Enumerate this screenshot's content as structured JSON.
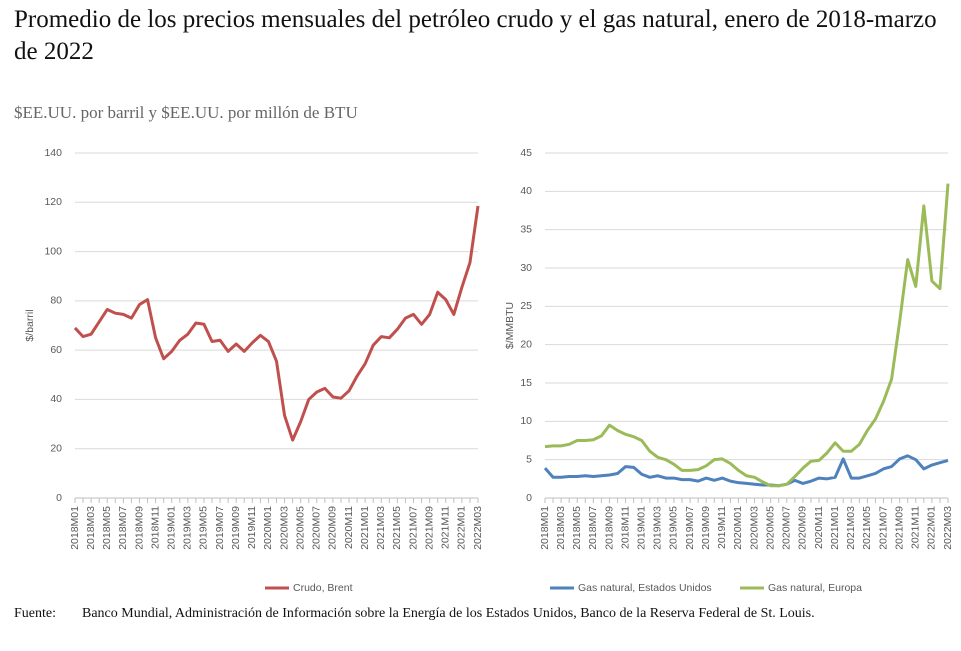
{
  "title": "Promedio de los precios mensuales del petróleo crudo y el gas natural, enero de 2018-marzo de 2022",
  "subtitle": "$EE.UU. por barril y $EE.UU. por millón de BTU",
  "source_label": "Fuente:",
  "source": "Banco Mundial, Administración de Información sobre la Energía de los Estados Unidos, Banco de la Reserva Federal de St. Louis.",
  "chart_data": [
    {
      "type": "line",
      "y_label": "$/barril",
      "ylim": [
        0,
        140
      ],
      "yticks": [
        0,
        20,
        40,
        60,
        80,
        100,
        120,
        140
      ],
      "grid": true,
      "categories": [
        "2018M01",
        null,
        "2018M03",
        null,
        "2018M05",
        null,
        "2018M07",
        null,
        "2018M09",
        null,
        "2018M11",
        null,
        "2019M01",
        null,
        "2019M03",
        null,
        "2019M05",
        null,
        "2019M07",
        null,
        "2019M09",
        null,
        "2019M11",
        null,
        "2020M01",
        null,
        "2020M03",
        null,
        "2020M05",
        null,
        "2020M07",
        null,
        "2020M09",
        null,
        "2020M11",
        null,
        "2021M01",
        null,
        "2021M03",
        null,
        "2021M05",
        null,
        "2021M07",
        null,
        "2021M09",
        null,
        "2021M11",
        null,
        "2022M01",
        null,
        "2022M03"
      ],
      "series": [
        {
          "name": "Crudo, Brent",
          "color": "#c0504d",
          "values": [
            69,
            65.5,
            66.5,
            71.5,
            76.5,
            75,
            74.5,
            73,
            78.5,
            80.5,
            65,
            56.5,
            59.5,
            64,
            66.5,
            71,
            70.5,
            63.5,
            64,
            59.5,
            62.5,
            59.5,
            63,
            66,
            63.5,
            55.5,
            33.5,
            23.5,
            31,
            40,
            43,
            44.5,
            41,
            40.5,
            43.5,
            49.5,
            54.5,
            62,
            65.5,
            65,
            68.5,
            73,
            74.5,
            70.5,
            74.5,
            83.5,
            80.5,
            74.5,
            85.5,
            95.5,
            118.5
          ]
        }
      ]
    },
    {
      "type": "line",
      "y_label": "$/MMBTU",
      "ylim": [
        0,
        45
      ],
      "yticks": [
        0,
        5,
        10,
        15,
        20,
        25,
        30,
        35,
        40,
        45
      ],
      "grid": true,
      "categories": [
        "2018M01",
        null,
        "2018M03",
        null,
        "2018M05",
        null,
        "2018M07",
        null,
        "2018M09",
        null,
        "2018M11",
        null,
        "2019M01",
        null,
        "2019M03",
        null,
        "2019M05",
        null,
        "2019M07",
        null,
        "2019M09",
        null,
        "2019M11",
        null,
        "2020M01",
        null,
        "2020M03",
        null,
        "2020M05",
        null,
        "2020M07",
        null,
        "2020M09",
        null,
        "2020M11",
        null,
        "2021M01",
        null,
        "2021M03",
        null,
        "2021M05",
        null,
        "2021M07",
        null,
        "2021M09",
        null,
        "2021M11",
        null,
        "2022M01",
        null,
        "2022M03"
      ],
      "series": [
        {
          "name": "Gas natural, Estados Unidos",
          "color": "#4f81bd",
          "values": [
            3.9,
            2.7,
            2.7,
            2.8,
            2.8,
            2.9,
            2.8,
            2.9,
            3.0,
            3.2,
            4.1,
            4.0,
            3.1,
            2.7,
            2.9,
            2.6,
            2.6,
            2.4,
            2.4,
            2.2,
            2.6,
            2.3,
            2.6,
            2.2,
            2.0,
            1.9,
            1.8,
            1.7,
            1.7,
            1.6,
            1.8,
            2.3,
            1.9,
            2.2,
            2.6,
            2.5,
            2.7,
            5.1,
            2.6,
            2.6,
            2.9,
            3.2,
            3.8,
            4.1,
            5.1,
            5.5,
            5.0,
            3.8,
            4.3,
            4.6,
            4.9
          ]
        },
        {
          "name": "Gas natural, Europa",
          "color": "#9bbb59",
          "values": [
            6.7,
            6.8,
            6.8,
            7.0,
            7.5,
            7.5,
            7.6,
            8.1,
            9.5,
            8.8,
            8.3,
            8.0,
            7.5,
            6.1,
            5.3,
            5.0,
            4.4,
            3.6,
            3.6,
            3.7,
            4.2,
            5.0,
            5.1,
            4.5,
            3.6,
            2.9,
            2.7,
            2.1,
            1.6,
            1.6,
            1.8,
            2.8,
            3.9,
            4.8,
            4.9,
            5.9,
            7.2,
            6.1,
            6.1,
            7.0,
            8.8,
            10.3,
            12.6,
            15.5,
            23.0,
            31.1,
            27.6,
            38.1,
            28.3,
            27.3,
            41.0
          ]
        }
      ]
    }
  ]
}
